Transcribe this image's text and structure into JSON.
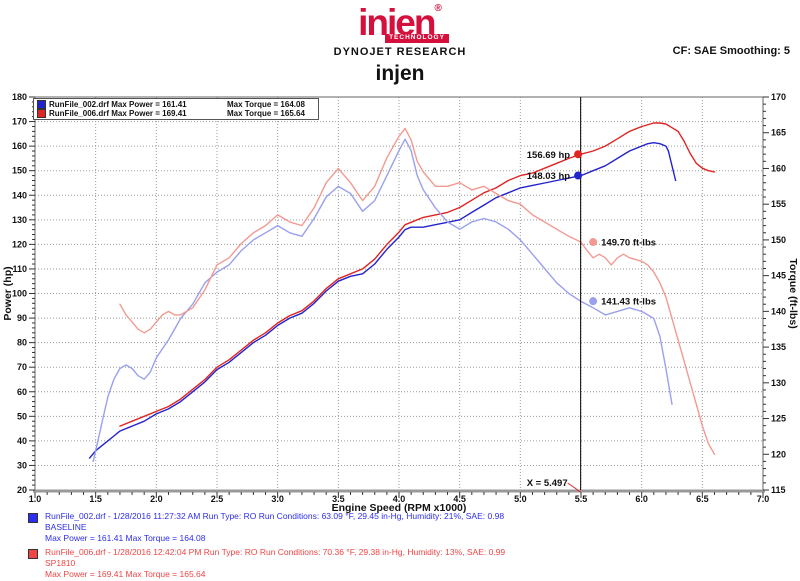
{
  "header": {
    "logo_text": "injen",
    "logo_reg": "®",
    "logo_sub": "TECHNOLOGY",
    "lab_name": "DYNOJET RESEARCH",
    "cf_text": "CF: SAE  Smoothing: 5",
    "chart_title": "injen",
    "brand_color": "#d5103c"
  },
  "legend": {
    "rows": [
      {
        "color": "#2323cd",
        "file_power": "RunFile_002.drf Max Power = 161.41",
        "torque": "Max Torque = 164.08"
      },
      {
        "color": "#e02424",
        "file_power": "RunFile_006.drf Max Power = 169.41",
        "torque": "Max Torque = 165.64"
      }
    ]
  },
  "chart_data": {
    "type": "line",
    "title": "injen",
    "xlabel": "Engine Speed (RPM x1000)",
    "ylabel_left": "Power (hp)",
    "ylabel_right": "Torque (ft-lbs)",
    "xlim": [
      1.0,
      7.0
    ],
    "ylim_left": [
      20,
      180
    ],
    "ylim_right": [
      115,
      170
    ],
    "x_major_step": 0.5,
    "x_minor_step": 0.1,
    "yl_major_step": 10,
    "yl_minor_step": 2,
    "yr_major_step": 5,
    "yr_minor_step": 1,
    "grid": {
      "vertical_every": 0.5,
      "horizontal_left_every": 10,
      "style": "dotted"
    },
    "cursor": {
      "x": 5.497,
      "label": "X = 5.497",
      "pointer_color": "#e02424"
    },
    "series": [
      {
        "name": "runfile-002-power",
        "axis": "left",
        "color": "#2323cd",
        "points": [
          [
            1.45,
            33
          ],
          [
            1.5,
            36
          ],
          [
            1.55,
            38
          ],
          [
            1.6,
            40
          ],
          [
            1.65,
            42
          ],
          [
            1.7,
            44
          ],
          [
            1.8,
            46
          ],
          [
            1.9,
            48
          ],
          [
            2.0,
            51
          ],
          [
            2.1,
            53
          ],
          [
            2.2,
            56
          ],
          [
            2.3,
            60
          ],
          [
            2.4,
            64
          ],
          [
            2.5,
            69
          ],
          [
            2.6,
            72
          ],
          [
            2.7,
            76
          ],
          [
            2.8,
            80
          ],
          [
            2.9,
            83
          ],
          [
            3.0,
            87
          ],
          [
            3.1,
            90
          ],
          [
            3.2,
            92
          ],
          [
            3.3,
            96
          ],
          [
            3.4,
            101
          ],
          [
            3.5,
            105
          ],
          [
            3.6,
            107
          ],
          [
            3.7,
            108
          ],
          [
            3.8,
            112
          ],
          [
            3.9,
            118
          ],
          [
            4.0,
            123
          ],
          [
            4.05,
            126
          ],
          [
            4.1,
            127
          ],
          [
            4.2,
            127
          ],
          [
            4.3,
            128
          ],
          [
            4.4,
            129
          ],
          [
            4.5,
            130
          ],
          [
            4.6,
            133
          ],
          [
            4.7,
            136
          ],
          [
            4.8,
            139
          ],
          [
            4.9,
            141
          ],
          [
            5.0,
            143
          ],
          [
            5.1,
            144
          ],
          [
            5.2,
            145
          ],
          [
            5.3,
            146
          ],
          [
            5.4,
            147
          ],
          [
            5.5,
            148
          ],
          [
            5.6,
            150
          ],
          [
            5.7,
            152
          ],
          [
            5.8,
            155
          ],
          [
            5.9,
            158
          ],
          [
            6.0,
            160
          ],
          [
            6.05,
            161
          ],
          [
            6.1,
            161.4
          ],
          [
            6.15,
            161
          ],
          [
            6.2,
            160
          ],
          [
            6.22,
            158
          ],
          [
            6.25,
            152
          ],
          [
            6.28,
            146
          ]
        ]
      },
      {
        "name": "runfile-006-power",
        "axis": "left",
        "color": "#e02424",
        "points": [
          [
            1.7,
            46
          ],
          [
            1.8,
            48
          ],
          [
            1.9,
            50
          ],
          [
            2.0,
            52
          ],
          [
            2.1,
            54
          ],
          [
            2.2,
            57
          ],
          [
            2.3,
            61
          ],
          [
            2.4,
            65
          ],
          [
            2.5,
            70
          ],
          [
            2.6,
            73
          ],
          [
            2.7,
            77
          ],
          [
            2.8,
            81
          ],
          [
            2.9,
            84
          ],
          [
            3.0,
            88
          ],
          [
            3.1,
            91
          ],
          [
            3.2,
            93
          ],
          [
            3.3,
            97
          ],
          [
            3.4,
            102
          ],
          [
            3.5,
            106
          ],
          [
            3.6,
            108
          ],
          [
            3.7,
            110
          ],
          [
            3.8,
            114
          ],
          [
            3.9,
            120
          ],
          [
            4.0,
            125
          ],
          [
            4.05,
            128
          ],
          [
            4.1,
            129
          ],
          [
            4.2,
            131
          ],
          [
            4.3,
            132
          ],
          [
            4.4,
            133
          ],
          [
            4.5,
            135
          ],
          [
            4.6,
            138
          ],
          [
            4.7,
            141
          ],
          [
            4.8,
            143
          ],
          [
            4.9,
            146
          ],
          [
            5.0,
            148
          ],
          [
            5.1,
            149
          ],
          [
            5.2,
            151
          ],
          [
            5.3,
            153
          ],
          [
            5.4,
            155
          ],
          [
            5.5,
            156.7
          ],
          [
            5.6,
            158
          ],
          [
            5.7,
            160
          ],
          [
            5.8,
            163
          ],
          [
            5.9,
            166
          ],
          [
            6.0,
            168
          ],
          [
            6.1,
            169.4
          ],
          [
            6.15,
            169.4
          ],
          [
            6.2,
            169
          ],
          [
            6.25,
            167.5
          ],
          [
            6.3,
            166
          ],
          [
            6.35,
            162
          ],
          [
            6.4,
            157
          ],
          [
            6.45,
            153
          ],
          [
            6.5,
            151
          ],
          [
            6.55,
            150
          ],
          [
            6.6,
            149.5
          ]
        ]
      },
      {
        "name": "runfile-002-torque",
        "axis": "right",
        "color": "#9aa0ee",
        "points": [
          [
            1.48,
            119
          ],
          [
            1.52,
            122
          ],
          [
            1.56,
            125
          ],
          [
            1.6,
            128
          ],
          [
            1.65,
            130.5
          ],
          [
            1.7,
            132
          ],
          [
            1.75,
            132.5
          ],
          [
            1.8,
            132
          ],
          [
            1.85,
            131
          ],
          [
            1.9,
            130.5
          ],
          [
            1.95,
            131.5
          ],
          [
            2.0,
            133.5
          ],
          [
            2.1,
            136
          ],
          [
            2.2,
            139
          ],
          [
            2.3,
            141
          ],
          [
            2.4,
            144
          ],
          [
            2.5,
            145.5
          ],
          [
            2.6,
            146.5
          ],
          [
            2.7,
            148.5
          ],
          [
            2.8,
            150
          ],
          [
            2.9,
            151
          ],
          [
            3.0,
            152
          ],
          [
            3.1,
            151
          ],
          [
            3.2,
            150.5
          ],
          [
            3.3,
            153
          ],
          [
            3.4,
            156
          ],
          [
            3.5,
            157.5
          ],
          [
            3.6,
            156.5
          ],
          [
            3.7,
            154
          ],
          [
            3.8,
            155.5
          ],
          [
            3.9,
            159
          ],
          [
            4.0,
            162.5
          ],
          [
            4.05,
            164.1
          ],
          [
            4.1,
            162.5
          ],
          [
            4.15,
            159
          ],
          [
            4.2,
            157
          ],
          [
            4.3,
            154.5
          ],
          [
            4.4,
            152.5
          ],
          [
            4.5,
            151.5
          ],
          [
            4.6,
            152.5
          ],
          [
            4.7,
            153
          ],
          [
            4.8,
            152.5
          ],
          [
            4.9,
            151.5
          ],
          [
            5.0,
            150
          ],
          [
            5.1,
            148
          ],
          [
            5.2,
            146
          ],
          [
            5.3,
            144
          ],
          [
            5.4,
            142.5
          ],
          [
            5.5,
            141.4
          ],
          [
            5.6,
            140.5
          ],
          [
            5.7,
            139.5
          ],
          [
            5.8,
            140
          ],
          [
            5.9,
            140.5
          ],
          [
            6.0,
            140
          ],
          [
            6.05,
            139.5
          ],
          [
            6.1,
            139
          ],
          [
            6.15,
            136.5
          ],
          [
            6.2,
            132
          ],
          [
            6.25,
            127
          ]
        ]
      },
      {
        "name": "runfile-006-torque",
        "axis": "right",
        "color": "#f29a91",
        "points": [
          [
            1.7,
            141
          ],
          [
            1.75,
            139.5
          ],
          [
            1.8,
            138.5
          ],
          [
            1.85,
            137.5
          ],
          [
            1.9,
            137
          ],
          [
            1.95,
            137.5
          ],
          [
            2.0,
            138.5
          ],
          [
            2.05,
            139.5
          ],
          [
            2.1,
            140
          ],
          [
            2.15,
            139.5
          ],
          [
            2.2,
            139.5
          ],
          [
            2.3,
            140.5
          ],
          [
            2.4,
            143
          ],
          [
            2.5,
            146.5
          ],
          [
            2.6,
            147.5
          ],
          [
            2.7,
            149.5
          ],
          [
            2.8,
            151
          ],
          [
            2.9,
            152
          ],
          [
            3.0,
            153.5
          ],
          [
            3.1,
            152.5
          ],
          [
            3.2,
            152
          ],
          [
            3.3,
            154.5
          ],
          [
            3.4,
            158
          ],
          [
            3.5,
            160
          ],
          [
            3.6,
            158
          ],
          [
            3.7,
            155.5
          ],
          [
            3.8,
            157.5
          ],
          [
            3.9,
            161.5
          ],
          [
            4.0,
            164.5
          ],
          [
            4.05,
            165.6
          ],
          [
            4.1,
            164
          ],
          [
            4.15,
            161
          ],
          [
            4.2,
            159.5
          ],
          [
            4.3,
            157.5
          ],
          [
            4.4,
            157.5
          ],
          [
            4.5,
            158
          ],
          [
            4.6,
            157
          ],
          [
            4.7,
            157.5
          ],
          [
            4.8,
            156.5
          ],
          [
            4.9,
            155.5
          ],
          [
            5.0,
            155
          ],
          [
            5.1,
            153.5
          ],
          [
            5.2,
            152.5
          ],
          [
            5.3,
            151.5
          ],
          [
            5.4,
            150.5
          ],
          [
            5.5,
            149.7
          ],
          [
            5.55,
            148.5
          ],
          [
            5.6,
            147.5
          ],
          [
            5.65,
            148
          ],
          [
            5.7,
            147.5
          ],
          [
            5.75,
            146.5
          ],
          [
            5.8,
            147.5
          ],
          [
            5.85,
            148
          ],
          [
            5.9,
            147.5
          ],
          [
            6.0,
            147
          ],
          [
            6.05,
            146.5
          ],
          [
            6.1,
            145.5
          ],
          [
            6.15,
            144
          ],
          [
            6.2,
            142
          ],
          [
            6.3,
            136
          ],
          [
            6.4,
            130
          ],
          [
            6.45,
            127
          ],
          [
            6.5,
            124
          ],
          [
            6.55,
            121.5
          ],
          [
            6.6,
            120
          ]
        ]
      }
    ],
    "markers": [
      {
        "x": 5.476,
        "y": 156.69,
        "axis": "left",
        "color": "#e02424",
        "label": "156.69 hp",
        "side": "left"
      },
      {
        "x": 5.476,
        "y": 148.03,
        "axis": "left",
        "color": "#2323cd",
        "label": "148.03 hp",
        "side": "left"
      },
      {
        "x": 5.6,
        "y": 149.7,
        "axis": "right",
        "color": "#f29a91",
        "label": "149.70 ft-lbs",
        "side": "right"
      },
      {
        "x": 5.6,
        "y": 141.43,
        "axis": "right",
        "color": "#9aa0ee",
        "label": "141.43 ft-lbs",
        "side": "right"
      }
    ]
  },
  "footer": {
    "runs": [
      {
        "color": "#2d2df2",
        "line1": "RunFile_002.drf - 1/28/2016 11:27:32 AM  Run Type: RO  Run Conditions: 63.09 °F, 29.45 in-Hg,  Humidity:  21%, SAE: 0.98",
        "line2": "BASELINE",
        "line3": "Max Power = 161.41  Max Torque = 164.08"
      },
      {
        "color": "#f04545",
        "line1": "RunFile_006.drf - 1/28/2016 12:42:04 PM  Run Type: RO  Run Conditions: 70.36 °F, 29.38 in-Hg,  Humidity:  13%, SAE: 0.99",
        "line2": "SP1810",
        "line3": "Max Power = 169.41  Max Torque = 165.64"
      }
    ]
  }
}
